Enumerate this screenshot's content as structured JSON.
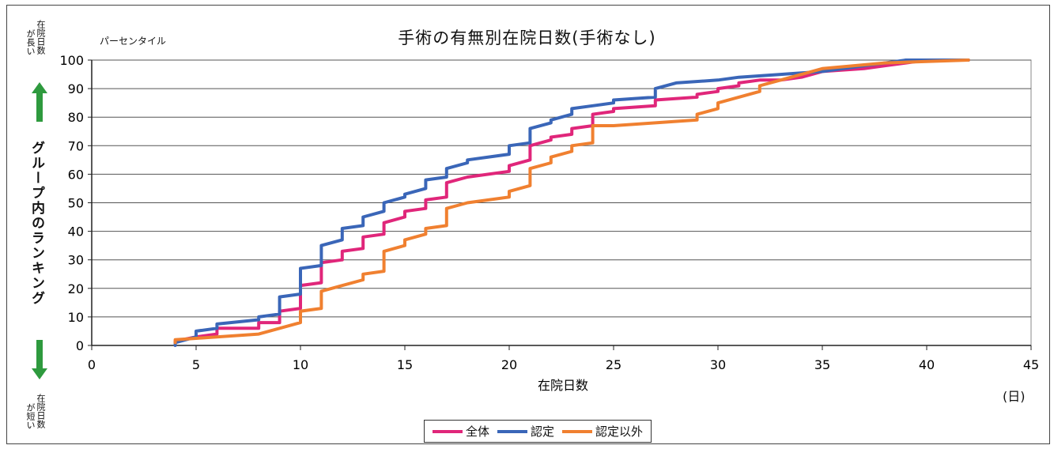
{
  "chart_data": {
    "type": "line",
    "title": "手術の有無別在院日数(手術なし)",
    "unit_label": "パーセンタイル",
    "xlabel": "在院日数",
    "x_unit": "(日)",
    "ylabel": "グループ内のランキング",
    "top_note": [
      "在院日数",
      "が長い"
    ],
    "bottom_note": [
      "在院日数",
      "が短い"
    ],
    "xlim": [
      0,
      45
    ],
    "ylim": [
      0,
      100
    ],
    "xticks": [
      0,
      5,
      10,
      15,
      20,
      25,
      30,
      35,
      40,
      45
    ],
    "yticks": [
      0,
      10,
      20,
      30,
      40,
      50,
      60,
      70,
      80,
      90,
      100
    ],
    "grid": "horizontal",
    "legend_position": "bottom",
    "series": [
      {
        "name": "全体",
        "color": "#e0267a",
        "points": [
          [
            4,
            1
          ],
          [
            4,
            1.5
          ],
          [
            5,
            3
          ],
          [
            6,
            4
          ],
          [
            6,
            6
          ],
          [
            8,
            6
          ],
          [
            8,
            8
          ],
          [
            9,
            8
          ],
          [
            9,
            12
          ],
          [
            10,
            13
          ],
          [
            10,
            21
          ],
          [
            11,
            22
          ],
          [
            11,
            29
          ],
          [
            12,
            30
          ],
          [
            12,
            33
          ],
          [
            13,
            34
          ],
          [
            13,
            38
          ],
          [
            14,
            39
          ],
          [
            14,
            43
          ],
          [
            15,
            45
          ],
          [
            15,
            47
          ],
          [
            16,
            48
          ],
          [
            16,
            51
          ],
          [
            17,
            52
          ],
          [
            17,
            57
          ],
          [
            18,
            59
          ],
          [
            20,
            61
          ],
          [
            20,
            63
          ],
          [
            21,
            65
          ],
          [
            21,
            70
          ],
          [
            22,
            72
          ],
          [
            22,
            73
          ],
          [
            23,
            74
          ],
          [
            23,
            76
          ],
          [
            24,
            77
          ],
          [
            24,
            81
          ],
          [
            25,
            82
          ],
          [
            25,
            83
          ],
          [
            27,
            84
          ],
          [
            27,
            86
          ],
          [
            29,
            87
          ],
          [
            29,
            88
          ],
          [
            30,
            89
          ],
          [
            30,
            90
          ],
          [
            31,
            91
          ],
          [
            31,
            92
          ],
          [
            32,
            93
          ],
          [
            33,
            93
          ],
          [
            34,
            94
          ],
          [
            35,
            96
          ],
          [
            37,
            97
          ],
          [
            38,
            98
          ],
          [
            39,
            99
          ],
          [
            40,
            100
          ],
          [
            42,
            100
          ]
        ]
      },
      {
        "name": "認定",
        "color": "#3a66b8",
        "points": [
          [
            4,
            0
          ],
          [
            4,
            1
          ],
          [
            5,
            3
          ],
          [
            5,
            5
          ],
          [
            6,
            6
          ],
          [
            6,
            7.5
          ],
          [
            8,
            9
          ],
          [
            8,
            10
          ],
          [
            9,
            11
          ],
          [
            9,
            17
          ],
          [
            10,
            18
          ],
          [
            10,
            27
          ],
          [
            11,
            28
          ],
          [
            11,
            35
          ],
          [
            12,
            37
          ],
          [
            12,
            41
          ],
          [
            13,
            42
          ],
          [
            13,
            45
          ],
          [
            14,
            47
          ],
          [
            14,
            50
          ],
          [
            15,
            52
          ],
          [
            15,
            53
          ],
          [
            16,
            55
          ],
          [
            16,
            58
          ],
          [
            17,
            59
          ],
          [
            17,
            62
          ],
          [
            18,
            64
          ],
          [
            18,
            65
          ],
          [
            20,
            67
          ],
          [
            20,
            70
          ],
          [
            21,
            71
          ],
          [
            21,
            76
          ],
          [
            22,
            78
          ],
          [
            22,
            79
          ],
          [
            23,
            81
          ],
          [
            23,
            83
          ],
          [
            24,
            84
          ],
          [
            25,
            85
          ],
          [
            25,
            86
          ],
          [
            27,
            87
          ],
          [
            27,
            90
          ],
          [
            28,
            92
          ],
          [
            30,
            93
          ],
          [
            31,
            94
          ],
          [
            33,
            95
          ],
          [
            35,
            96
          ],
          [
            37,
            98
          ],
          [
            38,
            99
          ],
          [
            39,
            100
          ],
          [
            42,
            100
          ]
        ]
      },
      {
        "name": "認定以外",
        "color": "#f08030",
        "points": [
          [
            4,
            1
          ],
          [
            4,
            2
          ],
          [
            5,
            2.5
          ],
          [
            8,
            4
          ],
          [
            9,
            6
          ],
          [
            10,
            8
          ],
          [
            10,
            12
          ],
          [
            11,
            13
          ],
          [
            11,
            19
          ],
          [
            12,
            21
          ],
          [
            13,
            23
          ],
          [
            13,
            25
          ],
          [
            14,
            26
          ],
          [
            14,
            28
          ],
          [
            14,
            33
          ],
          [
            15,
            35
          ],
          [
            15,
            37
          ],
          [
            16,
            39
          ],
          [
            16,
            41
          ],
          [
            17,
            42
          ],
          [
            17,
            48
          ],
          [
            18,
            50
          ],
          [
            20,
            52
          ],
          [
            20,
            54
          ],
          [
            21,
            56
          ],
          [
            21,
            62
          ],
          [
            22,
            64
          ],
          [
            22,
            66
          ],
          [
            23,
            68
          ],
          [
            23,
            70
          ],
          [
            24,
            71
          ],
          [
            24,
            77
          ],
          [
            25,
            77
          ],
          [
            27,
            78
          ],
          [
            29,
            79
          ],
          [
            29,
            81
          ],
          [
            30,
            83
          ],
          [
            30,
            85
          ],
          [
            31,
            87
          ],
          [
            32,
            89
          ],
          [
            32,
            91
          ],
          [
            33,
            93
          ],
          [
            34,
            95
          ],
          [
            35,
            97
          ],
          [
            38,
            99
          ],
          [
            42,
            100
          ]
        ]
      }
    ]
  }
}
